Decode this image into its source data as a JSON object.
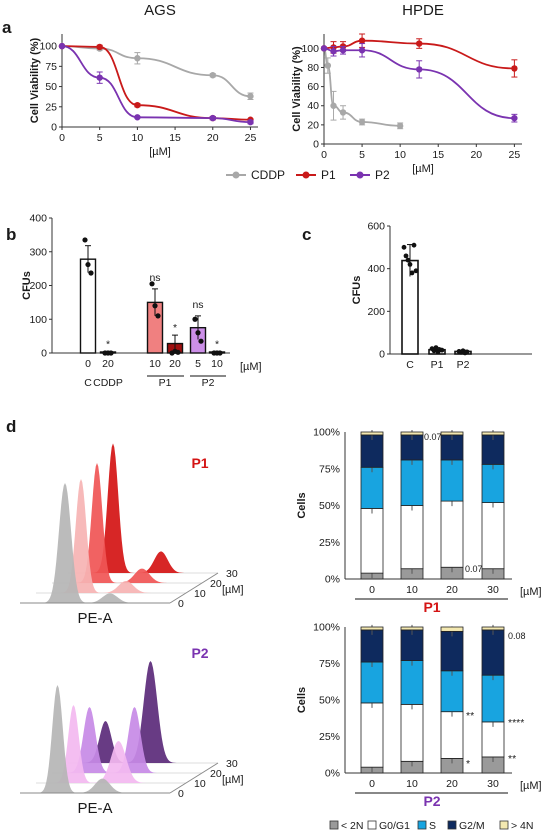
{
  "panels": {
    "a": "a",
    "b": "b",
    "c": "c",
    "d": "d"
  },
  "chart_data": [
    {
      "id": "a-ags",
      "type": "line",
      "title": "AGS",
      "xlabel": "[µM]",
      "ylabel": "Cell Viability (%)",
      "xlim": [
        0,
        26
      ],
      "ylim": [
        0,
        115
      ],
      "xticks": [
        "0",
        "5",
        "10",
        "15",
        "20",
        "25"
      ],
      "yticks": [
        "0",
        "25",
        "50",
        "75",
        "100"
      ],
      "series": [
        {
          "name": "CDDP",
          "color": "#a8a8a8",
          "x": [
            0,
            5,
            10,
            20,
            25
          ],
          "y": [
            100,
            97,
            85,
            64,
            38
          ],
          "err": [
            0,
            2,
            7,
            2,
            4
          ]
        },
        {
          "name": "P1",
          "color": "#c91a1a",
          "x": [
            0,
            5,
            10,
            20,
            25
          ],
          "y": [
            100,
            99,
            27,
            11,
            9
          ],
          "err": [
            0,
            2,
            2,
            2,
            1
          ]
        },
        {
          "name": "P2",
          "color": "#7a33b0",
          "x": [
            0,
            5,
            10,
            20,
            25
          ],
          "y": [
            100,
            61,
            12,
            11,
            6
          ],
          "err": [
            0,
            7,
            1,
            2,
            2
          ]
        }
      ]
    },
    {
      "id": "a-hpde",
      "type": "line",
      "title": "HPDE",
      "xlabel": "[µM]",
      "ylabel": "Cell Viability (%)",
      "xlim": [
        0,
        26
      ],
      "ylim": [
        0,
        115
      ],
      "xticks": [
        "0",
        "5",
        "10",
        "15",
        "20",
        "25"
      ],
      "yticks": [
        "0",
        "20",
        "40",
        "60",
        "80",
        "100"
      ],
      "series": [
        {
          "name": "CDDP",
          "color": "#a8a8a8",
          "x": [
            0,
            0.5,
            1.25,
            2.5,
            5,
            10
          ],
          "y": [
            100,
            82,
            40,
            33,
            23,
            19
          ],
          "err": [
            0,
            8,
            15,
            7,
            3,
            3
          ]
        },
        {
          "name": "P1",
          "color": "#c91a1a",
          "x": [
            0,
            1.25,
            2.5,
            5,
            12.5,
            25
          ],
          "y": [
            100,
            101,
            102,
            108,
            105,
            79
          ],
          "err": [
            0,
            6,
            5,
            7,
            5,
            9
          ]
        },
        {
          "name": "P2",
          "color": "#7a33b0",
          "x": [
            0,
            1.25,
            2.5,
            5,
            12.5,
            25
          ],
          "y": [
            100,
            97,
            98,
            98,
            78,
            27
          ],
          "err": [
            0,
            5,
            4,
            7,
            9,
            4
          ]
        }
      ]
    },
    {
      "id": "b",
      "type": "bar",
      "ylabel": "CFUs",
      "ylim": [
        0,
        400
      ],
      "yticks": [
        "0",
        "100",
        "200",
        "300",
        "400"
      ],
      "unit": "[µM]",
      "categories": [
        "0",
        "20",
        "10",
        "20",
        "5",
        "10"
      ],
      "groups": [
        "C",
        "CDDP",
        "P1",
        "P2"
      ],
      "values": [
        278,
        3,
        150,
        28,
        75,
        3
      ],
      "err": [
        40,
        2,
        40,
        25,
        35,
        2
      ],
      "colors": [
        "#ffffff",
        "#ffffff",
        "#f08080",
        "#a01010",
        "#cc8fe8",
        "#ffffff"
      ],
      "points": [
        [
          335,
          262,
          237
        ],
        [
          0,
          0,
          0
        ],
        [
          205,
          140,
          110
        ],
        [
          0,
          5,
          2
        ],
        [
          100,
          60,
          35
        ],
        [
          0,
          0,
          0
        ]
      ],
      "annotations": [
        "",
        "*",
        "ns",
        "*",
        "ns",
        "*"
      ]
    },
    {
      "id": "c",
      "type": "bar",
      "ylabel": "CFUs",
      "ylim": [
        0,
        600
      ],
      "yticks": [
        "0",
        "200",
        "400",
        "600"
      ],
      "categories": [
        "C",
        "P1",
        "P2"
      ],
      "values": [
        438,
        20,
        12
      ],
      "err": [
        75,
        10,
        6
      ],
      "points": [
        [
          500,
          460,
          440,
          420,
          380,
          510,
          390
        ],
        [
          25,
          15,
          30,
          10,
          20,
          18
        ],
        [
          12,
          8,
          15,
          5,
          10
        ]
      ]
    },
    {
      "id": "d-p1",
      "type": "bar",
      "stacked": true,
      "title": "P1",
      "ylabel": "Cells",
      "unit": "[µM]",
      "categories": [
        "0",
        "10",
        "20",
        "30"
      ],
      "yticks": [
        "0%",
        "25%",
        "50%",
        "75%",
        "100%"
      ],
      "series": [
        {
          "name": "< 2N",
          "color": "#9a9a9a",
          "values": [
            4,
            7,
            8,
            7
          ]
        },
        {
          "name": "G0/G1",
          "color": "#ffffff",
          "values": [
            44,
            43,
            45,
            45
          ]
        },
        {
          "name": "S",
          "color": "#18a4e0",
          "values": [
            28,
            31,
            28,
            26
          ]
        },
        {
          "name": "G2/M",
          "color": "#0e2a5e",
          "values": [
            22,
            17,
            17,
            20
          ]
        },
        {
          "name": "> 4N",
          "color": "#f3e8b0",
          "values": [
            2,
            2,
            2,
            2
          ]
        }
      ],
      "annotations": [
        {
          "bar": 1,
          "text": "0.07"
        },
        {
          "bar": 2,
          "text": "0.07"
        }
      ]
    },
    {
      "id": "d-p2",
      "type": "bar",
      "stacked": true,
      "title": "P2",
      "ylabel": "Cells",
      "unit": "[µM]",
      "categories": [
        "0",
        "10",
        "20",
        "30"
      ],
      "yticks": [
        "0%",
        "25%",
        "50%",
        "75%",
        "100%"
      ],
      "series": [
        {
          "name": "< 2N",
          "color": "#9a9a9a",
          "values": [
            4,
            8,
            10,
            11
          ]
        },
        {
          "name": "G0/G1",
          "color": "#ffffff",
          "values": [
            44,
            39,
            32,
            24
          ]
        },
        {
          "name": "S",
          "color": "#18a4e0",
          "values": [
            28,
            30,
            28,
            32
          ]
        },
        {
          "name": "G2/M",
          "color": "#0e2a5e",
          "values": [
            22,
            21,
            27,
            31
          ]
        },
        {
          "name": "> 4N",
          "color": "#f3e8b0",
          "values": [
            2,
            2,
            3,
            2
          ]
        }
      ],
      "annotations": [
        {
          "bar": 3,
          "text": "0.08"
        },
        {
          "bar": 2,
          "text": "**"
        },
        {
          "bar": 2,
          "text": "*"
        },
        {
          "bar": 3,
          "text": "****"
        },
        {
          "bar": 3,
          "text": "**"
        }
      ]
    }
  ],
  "flow": {
    "p1": {
      "title": "P1",
      "color": "#d41414",
      "xlabel": "PE-A",
      "ticks": [
        "0",
        "10",
        "20",
        "30"
      ],
      "unit": "[µM]"
    },
    "p2": {
      "title": "P2",
      "color": "#7a33b0",
      "xlabel": "PE-A",
      "ticks": [
        "0",
        "10",
        "20",
        "30"
      ],
      "unit": "[µM]"
    }
  },
  "legend_top": [
    "CDDP",
    "P1",
    "P2"
  ],
  "legend_bottom": [
    "< 2N",
    "G0/G1",
    "S",
    "G2/M",
    "> 4N"
  ],
  "b_extra": {
    "lines": [
      "C",
      "CDDP",
      "P1",
      "P2"
    ]
  }
}
